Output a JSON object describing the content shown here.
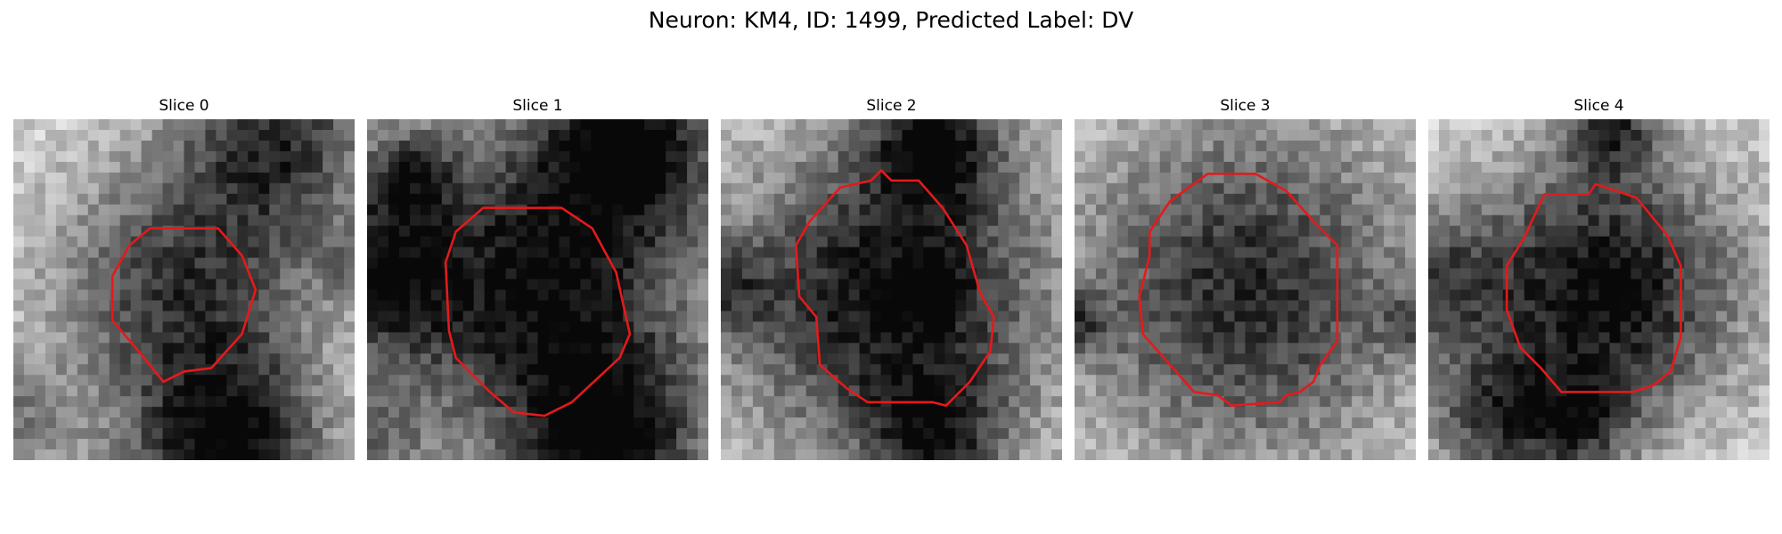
{
  "figure": {
    "title": "Neuron: KM4, ID: 1499, Predicted Label: DV"
  },
  "panels": [
    {
      "label": "Slice 0",
      "blobs": [
        [
          0.5,
          0.5,
          0.62,
          0.27
        ],
        [
          0.0,
          0.9,
          0.36,
          0.12
        ],
        [
          0.78,
          0.05,
          0.62,
          0.2
        ],
        [
          0.63,
          0.98,
          0.78,
          0.2
        ],
        [
          1.0,
          0.42,
          0.3,
          0.08
        ]
      ],
      "contour": [
        [
          0.4,
          0.32
        ],
        [
          0.6,
          0.32
        ],
        [
          0.67,
          0.4
        ],
        [
          0.71,
          0.5
        ],
        [
          0.67,
          0.63
        ],
        [
          0.58,
          0.73
        ],
        [
          0.5,
          0.74
        ],
        [
          0.44,
          0.77
        ],
        [
          0.35,
          0.66
        ],
        [
          0.29,
          0.59
        ],
        [
          0.29,
          0.46
        ],
        [
          0.34,
          0.37
        ]
      ]
    },
    {
      "label": "Slice 1",
      "blobs": [
        [
          0.5,
          0.5,
          0.78,
          0.33
        ],
        [
          0.0,
          0.45,
          0.62,
          0.17
        ],
        [
          0.0,
          0.95,
          0.36,
          0.12
        ],
        [
          0.78,
          0.05,
          0.72,
          0.2
        ],
        [
          0.72,
          0.97,
          0.7,
          0.2
        ],
        [
          0.12,
          0.15,
          0.45,
          0.1
        ]
      ],
      "contour": [
        [
          0.34,
          0.26
        ],
        [
          0.57,
          0.26
        ],
        [
          0.66,
          0.32
        ],
        [
          0.73,
          0.45
        ],
        [
          0.77,
          0.63
        ],
        [
          0.74,
          0.7
        ],
        [
          0.6,
          0.83
        ],
        [
          0.52,
          0.87
        ],
        [
          0.43,
          0.86
        ],
        [
          0.36,
          0.8
        ],
        [
          0.26,
          0.7
        ],
        [
          0.24,
          0.62
        ],
        [
          0.23,
          0.42
        ],
        [
          0.26,
          0.33
        ]
      ]
    },
    {
      "label": "Slice 2",
      "blobs": [
        [
          0.5,
          0.52,
          0.8,
          0.34
        ],
        [
          0.62,
          0.5,
          0.35,
          0.06
        ],
        [
          0.0,
          0.5,
          0.4,
          0.1
        ],
        [
          0.63,
          0.06,
          0.6,
          0.14
        ],
        [
          0.63,
          0.95,
          0.5,
          0.14
        ]
      ],
      "contour": [
        [
          0.44,
          0.18
        ],
        [
          0.47,
          0.15
        ],
        [
          0.5,
          0.18
        ],
        [
          0.58,
          0.18
        ],
        [
          0.65,
          0.26
        ],
        [
          0.72,
          0.37
        ],
        [
          0.76,
          0.51
        ],
        [
          0.8,
          0.58
        ],
        [
          0.79,
          0.68
        ],
        [
          0.73,
          0.77
        ],
        [
          0.66,
          0.84
        ],
        [
          0.62,
          0.83
        ],
        [
          0.43,
          0.83
        ],
        [
          0.37,
          0.79
        ],
        [
          0.29,
          0.72
        ],
        [
          0.28,
          0.58
        ],
        [
          0.23,
          0.52
        ],
        [
          0.22,
          0.37
        ],
        [
          0.26,
          0.3
        ],
        [
          0.35,
          0.2
        ]
      ]
    },
    {
      "label": "Slice 3",
      "blobs": [
        [
          0.5,
          0.5,
          0.68,
          0.36
        ],
        [
          1.0,
          0.6,
          0.35,
          0.07
        ],
        [
          0.0,
          0.6,
          0.4,
          0.07
        ]
      ],
      "contour": [
        [
          0.39,
          0.16
        ],
        [
          0.53,
          0.16
        ],
        [
          0.62,
          0.21
        ],
        [
          0.71,
          0.31
        ],
        [
          0.77,
          0.37
        ],
        [
          0.77,
          0.65
        ],
        [
          0.72,
          0.72
        ],
        [
          0.7,
          0.77
        ],
        [
          0.66,
          0.8
        ],
        [
          0.62,
          0.81
        ],
        [
          0.6,
          0.83
        ],
        [
          0.46,
          0.84
        ],
        [
          0.42,
          0.81
        ],
        [
          0.35,
          0.8
        ],
        [
          0.28,
          0.72
        ],
        [
          0.2,
          0.63
        ],
        [
          0.19,
          0.52
        ],
        [
          0.22,
          0.4
        ],
        [
          0.22,
          0.33
        ],
        [
          0.28,
          0.24
        ]
      ]
    },
    {
      "label": "Slice 4",
      "blobs": [
        [
          0.52,
          0.5,
          0.82,
          0.28
        ],
        [
          0.0,
          0.47,
          0.44,
          0.16
        ],
        [
          0.2,
          0.88,
          0.52,
          0.14
        ],
        [
          0.53,
          0.02,
          0.55,
          0.1
        ],
        [
          0.45,
          0.9,
          0.42,
          0.11
        ]
      ],
      "contour": [
        [
          0.34,
          0.22
        ],
        [
          0.47,
          0.22
        ],
        [
          0.49,
          0.19
        ],
        [
          0.52,
          0.2
        ],
        [
          0.61,
          0.23
        ],
        [
          0.7,
          0.34
        ],
        [
          0.74,
          0.43
        ],
        [
          0.74,
          0.64
        ],
        [
          0.71,
          0.74
        ],
        [
          0.66,
          0.78
        ],
        [
          0.6,
          0.8
        ],
        [
          0.39,
          0.8
        ],
        [
          0.33,
          0.73
        ],
        [
          0.27,
          0.67
        ],
        [
          0.23,
          0.56
        ],
        [
          0.23,
          0.43
        ],
        [
          0.28,
          0.35
        ]
      ]
    }
  ]
}
